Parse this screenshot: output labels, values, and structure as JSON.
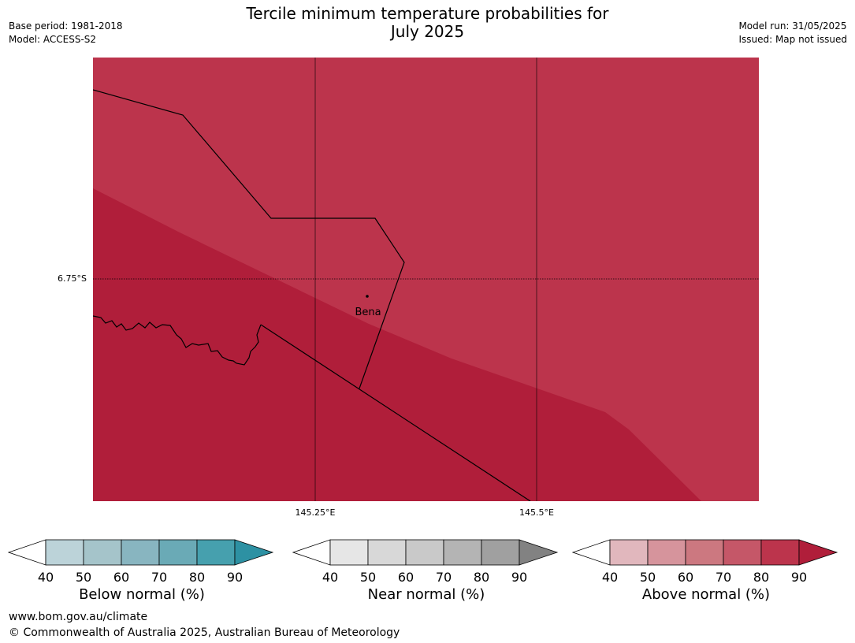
{
  "header": {
    "title_line1": "Tercile minimum temperature probabilities for",
    "title_line2": "July 2025",
    "base_period": "Base period: 1981-2018",
    "model": "Model: ACCESS-S2",
    "model_run": "Model run: 31/05/2025",
    "issued": "Issued: Map not issued"
  },
  "map": {
    "lat_label": "6.75°S",
    "lon_labels": [
      "145.25°E",
      "145.5°E"
    ],
    "town": "Bena",
    "colors": {
      "band_80_90": "#bc344c",
      "band_90_plus": "#b01e3a",
      "border": "#000000"
    },
    "regions": [
      {
        "category": "Above normal",
        "probability_band": "80-90"
      },
      {
        "category": "Above normal",
        "probability_band": "90+"
      }
    ]
  },
  "colorbars": [
    {
      "name": "below-normal",
      "title": "Below normal (%)",
      "ticks": [
        "40",
        "50",
        "60",
        "70",
        "80",
        "90"
      ],
      "colors": [
        "#ffffff",
        "#bcd3d9",
        "#a5c4ca",
        "#88b5c0",
        "#6aaab6",
        "#46a0ae",
        "#2d91a3"
      ]
    },
    {
      "name": "near-normal",
      "title": "Near normal (%)",
      "ticks": [
        "40",
        "50",
        "60",
        "70",
        "80",
        "90"
      ],
      "colors": [
        "#ffffff",
        "#e6e6e6",
        "#d8d8d8",
        "#c9c9c9",
        "#b4b4b4",
        "#a0a0a0",
        "#828282"
      ]
    },
    {
      "name": "above-normal",
      "title": "Above normal (%)",
      "ticks": [
        "40",
        "50",
        "60",
        "70",
        "80",
        "90"
      ],
      "colors": [
        "#ffffff",
        "#e1b7bd",
        "#d6949c",
        "#cc7880",
        "#c55768",
        "#bc344c",
        "#b01e3a"
      ]
    }
  ],
  "footer": {
    "url": "www.bom.gov.au/climate",
    "copyright": "© Commonwealth of Australia 2025, Australian Bureau of Meteorology"
  }
}
